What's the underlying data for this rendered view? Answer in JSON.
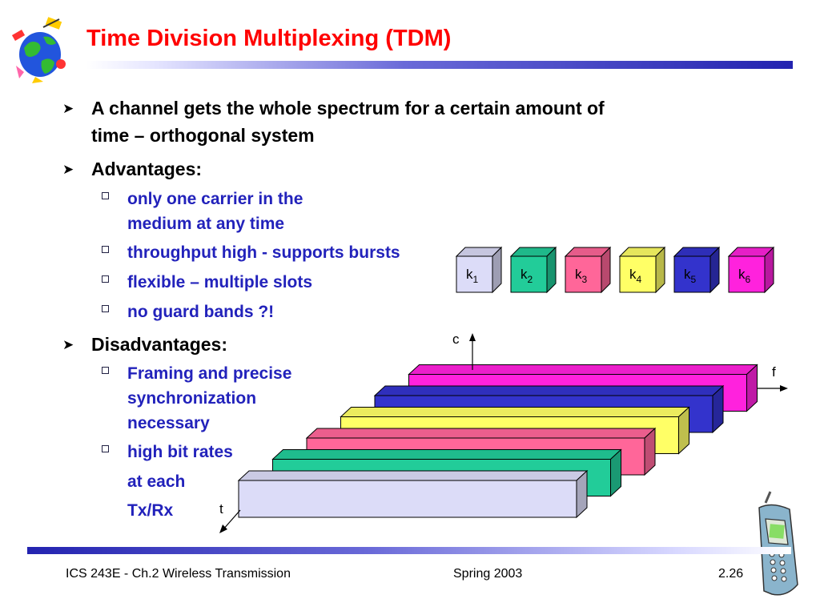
{
  "slide": {
    "title": "Time Division Multiplexing (TDM)"
  },
  "bullets": [
    {
      "level": 1,
      "lines": [
        "A channel gets the whole spectrum for a certain amount of",
        "time – orthogonal system"
      ]
    },
    {
      "level": 1,
      "lines": [
        "Advantages:"
      ]
    },
    {
      "level": 2,
      "lines": [
        "only one carrier in the",
        "medium at any time"
      ]
    },
    {
      "level": 2,
      "lines": [
        "throughput high - supports bursts"
      ]
    },
    {
      "level": 2,
      "lines": [
        "flexible – multiple slots"
      ]
    },
    {
      "level": 2,
      "lines": [
        "no guard bands ?!"
      ]
    },
    {
      "level": 1,
      "lines": [
        "Disadvantages:"
      ]
    },
    {
      "level": 2,
      "lines": [
        "Framing and precise",
        "synchronization",
        "necessary"
      ]
    },
    {
      "level": 2,
      "lines": [
        "high bit rates"
      ]
    },
    {
      "level": 3,
      "lines": [
        "at each"
      ]
    },
    {
      "level": 3,
      "lines": [
        "Tx/Rx"
      ]
    }
  ],
  "diagram": {
    "channels": [
      {
        "base": "k",
        "sub": "1",
        "color": "#dcdcf8"
      },
      {
        "base": "k",
        "sub": "2",
        "color": "#22cc99"
      },
      {
        "base": "k",
        "sub": "3",
        "color": "#ff6699"
      },
      {
        "base": "k",
        "sub": "4",
        "color": "#ffff66"
      },
      {
        "base": "k",
        "sub": "5",
        "color": "#3333cc"
      },
      {
        "base": "k",
        "sub": "6",
        "color": "#ff22dd"
      }
    ],
    "axes": {
      "code": "c",
      "frequency": "f",
      "time": "t"
    },
    "slot_order_front_to_back": [
      "k1",
      "k2",
      "k3",
      "k4",
      "k5",
      "k6"
    ]
  },
  "footer": {
    "left": "ICS 243E - Ch.2 Wireless Transmission",
    "center": "Spring 2003",
    "right": "2.26"
  },
  "icons": [
    "globe-satellite-logo-icon",
    "mobile-phone-icon",
    "bullet-arrow-icon",
    "bullet-square-icon"
  ]
}
